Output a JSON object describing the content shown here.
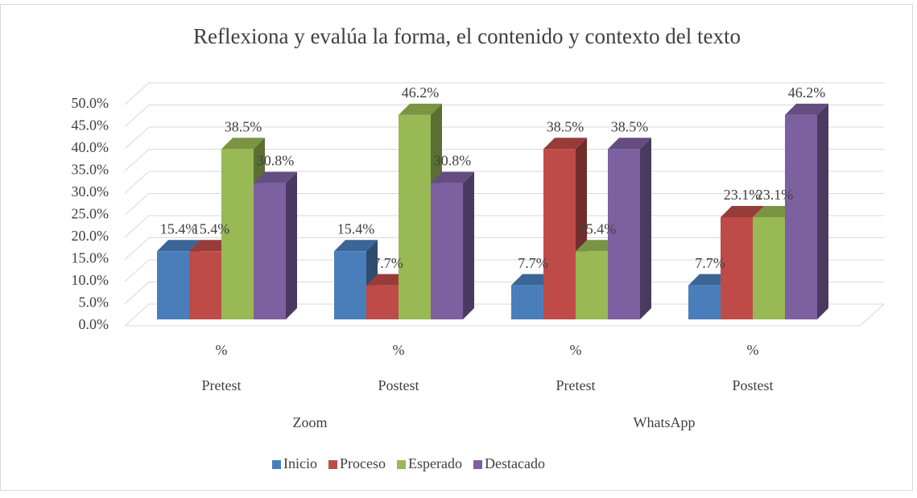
{
  "chart_data": {
    "type": "bar3d",
    "title": "Reflexiona y evalúa la forma, el contenido y contexto del texto",
    "categories": [
      "%",
      "%",
      "%",
      "%"
    ],
    "sub_categories": [
      "Pretest",
      "Postest",
      "Pretest",
      "Postest"
    ],
    "groups": [
      "Zoom",
      "WhatsApp"
    ],
    "series": [
      {
        "name": "Inicio",
        "color": "#4a7ebb",
        "values": [
          15.4,
          15.4,
          7.7,
          7.7
        ],
        "value_labels": [
          "15.4%",
          "15.4%",
          "7.7%",
          "7.7%"
        ]
      },
      {
        "name": "Proceso",
        "color": "#be4b48",
        "values": [
          15.4,
          7.7,
          38.5,
          23.1
        ],
        "value_labels": [
          "15.4%",
          "7.7%",
          "38.5%",
          "23.1%"
        ]
      },
      {
        "name": "Esperado",
        "color": "#98b954",
        "values": [
          38.5,
          46.2,
          15.4,
          23.1
        ],
        "value_labels": [
          "38.5%",
          "46.2%",
          "15.4%",
          "23.1%"
        ]
      },
      {
        "name": "Destacado",
        "color": "#7d60a0",
        "values": [
          30.8,
          30.8,
          38.5,
          46.2
        ],
        "value_labels": [
          "30.8%",
          "30.8%",
          "38.5%",
          "46.2%"
        ]
      }
    ],
    "ylim": [
      0,
      50
    ],
    "yticks": [
      {
        "value": 0,
        "label": "0.0%"
      },
      {
        "value": 5,
        "label": "5.0%"
      },
      {
        "value": 10,
        "label": "10.0%"
      },
      {
        "value": 15,
        "label": "15.0%"
      },
      {
        "value": 20,
        "label": "20.0%"
      },
      {
        "value": 25,
        "label": "25.0%"
      },
      {
        "value": 30,
        "label": "30.0%"
      },
      {
        "value": 35,
        "label": "35.0%"
      },
      {
        "value": 40,
        "label": "40.0%"
      },
      {
        "value": 45,
        "label": "45.0%"
      },
      {
        "value": 50,
        "label": "50.0%"
      }
    ],
    "grid": true,
    "legend": "bottom"
  }
}
